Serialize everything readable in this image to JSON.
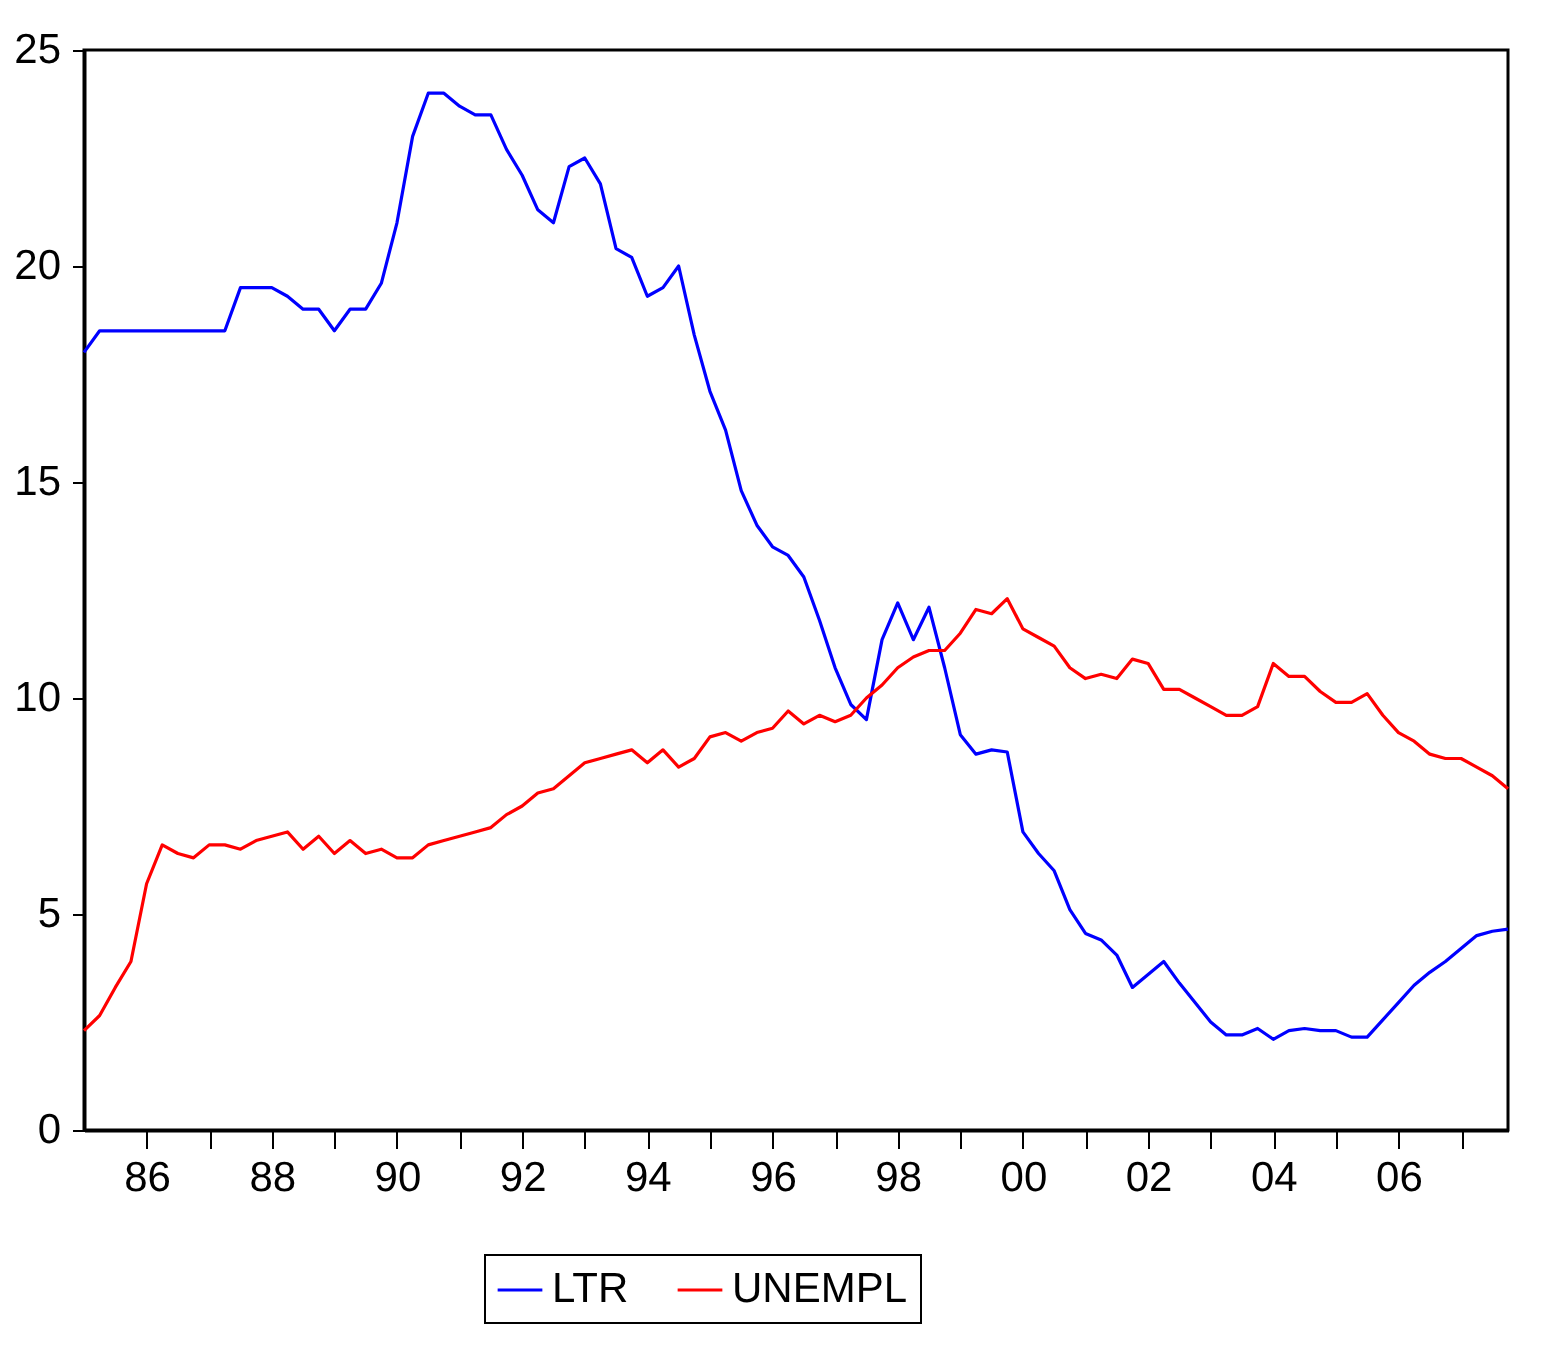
{
  "chart_data": {
    "type": "line",
    "x": [
      1985,
      1985.25,
      1985.5,
      1985.75,
      1986,
      1986.25,
      1986.5,
      1986.75,
      1987,
      1987.25,
      1987.5,
      1987.75,
      1988,
      1988.25,
      1988.5,
      1988.75,
      1989,
      1989.25,
      1989.5,
      1989.75,
      1990,
      1990.25,
      1990.5,
      1990.75,
      1991,
      1991.25,
      1991.5,
      1991.75,
      1992,
      1992.25,
      1992.5,
      1992.75,
      1993,
      1993.25,
      1993.5,
      1993.75,
      1994,
      1994.25,
      1994.5,
      1994.75,
      1995,
      1995.25,
      1995.5,
      1995.75,
      1996,
      1996.25,
      1996.5,
      1996.75,
      1997,
      1997.25,
      1997.5,
      1997.75,
      1998,
      1998.25,
      1998.5,
      1998.75,
      1999,
      1999.25,
      1999.5,
      1999.75,
      2000,
      2000.25,
      2000.5,
      2000.75,
      2001,
      2001.25,
      2001.5,
      2001.75,
      2002,
      2002.25,
      2002.5,
      2002.75,
      2003,
      2003.25,
      2003.5,
      2003.75,
      2004,
      2004.25,
      2004.5,
      2004.75,
      2005,
      2005.25,
      2005.5,
      2005.75,
      2006,
      2006.25,
      2006.5,
      2006.75,
      2007,
      2007.25,
      2007.5,
      2007.75
    ],
    "series": [
      {
        "name": "LTR",
        "color": "#0000ff",
        "values": [
          18.0,
          18.5,
          18.5,
          18.5,
          18.5,
          18.5,
          18.5,
          18.5,
          18.5,
          18.5,
          19.5,
          19.5,
          19.5,
          19.3,
          19.0,
          19.0,
          18.5,
          19.0,
          19.0,
          19.6,
          21.0,
          23.0,
          24.0,
          24.0,
          23.7,
          23.5,
          23.5,
          22.7,
          22.1,
          21.3,
          21.0,
          22.3,
          22.5,
          21.9,
          20.4,
          20.2,
          19.3,
          19.5,
          20.0,
          18.4,
          17.1,
          16.2,
          14.8,
          14.0,
          13.5,
          13.3,
          12.8,
          11.8,
          10.7,
          9.85,
          9.5,
          11.35,
          12.2,
          11.35,
          12.1,
          10.7,
          9.15,
          8.7,
          8.8,
          8.75,
          6.9,
          6.4,
          6.0,
          5.1,
          4.55,
          4.4,
          4.05,
          3.3,
          3.6,
          3.9,
          3.4,
          2.95,
          2.5,
          2.2,
          2.2,
          2.35,
          2.1,
          2.3,
          2.35,
          2.3,
          2.3,
          2.15,
          2.15,
          2.55,
          2.95,
          3.35,
          3.65,
          3.9,
          4.2,
          4.5,
          4.6,
          4.65
        ]
      },
      {
        "name": "UNEMPL",
        "color": "#ff0000",
        "values": [
          2.3,
          2.65,
          3.3,
          3.9,
          5.7,
          6.6,
          6.4,
          6.3,
          6.6,
          6.6,
          6.5,
          6.7,
          6.8,
          6.9,
          6.5,
          6.8,
          6.4,
          6.7,
          6.4,
          6.5,
          6.3,
          6.3,
          6.6,
          6.7,
          6.8,
          6.9,
          7.0,
          7.3,
          7.5,
          7.8,
          7.9,
          8.2,
          8.5,
          8.6,
          8.7,
          8.8,
          8.5,
          8.8,
          8.4,
          8.6,
          9.1,
          9.2,
          9.0,
          9.2,
          9.3,
          9.7,
          9.4,
          9.6,
          9.45,
          9.6,
          10.0,
          10.3,
          10.7,
          10.95,
          11.1,
          11.1,
          11.5,
          12.05,
          11.95,
          12.3,
          11.6,
          11.4,
          11.2,
          10.7,
          10.45,
          10.55,
          10.45,
          10.9,
          10.8,
          10.2,
          10.2,
          10.0,
          9.8,
          9.6,
          9.6,
          9.8,
          10.8,
          10.5,
          10.5,
          10.15,
          9.9,
          9.9,
          10.1,
          9.6,
          9.2,
          9.0,
          8.7,
          8.6,
          8.6,
          8.4,
          8.2,
          7.9
        ]
      }
    ],
    "xlim": [
      1985,
      2007.75
    ],
    "xticks": [
      {
        "value": 1986,
        "label": "86"
      },
      {
        "value": 1987,
        "label": null
      },
      {
        "value": 1988,
        "label": "88"
      },
      {
        "value": 1989,
        "label": null
      },
      {
        "value": 1990,
        "label": "90"
      },
      {
        "value": 1991,
        "label": null
      },
      {
        "value": 1992,
        "label": "92"
      },
      {
        "value": 1993,
        "label": null
      },
      {
        "value": 1994,
        "label": "94"
      },
      {
        "value": 1995,
        "label": null
      },
      {
        "value": 1996,
        "label": "96"
      },
      {
        "value": 1997,
        "label": null
      },
      {
        "value": 1998,
        "label": "98"
      },
      {
        "value": 1999,
        "label": null
      },
      {
        "value": 2000,
        "label": "00"
      },
      {
        "value": 2001,
        "label": null
      },
      {
        "value": 2002,
        "label": "02"
      },
      {
        "value": 2003,
        "label": null
      },
      {
        "value": 2004,
        "label": "04"
      },
      {
        "value": 2005,
        "label": null
      },
      {
        "value": 2006,
        "label": "06"
      },
      {
        "value": 2007,
        "label": null
      }
    ],
    "ylim": [
      0,
      25
    ],
    "yticks": [
      0,
      5,
      10,
      15,
      20,
      25
    ],
    "legend": "bottom",
    "grid": false,
    "marker": "none",
    "line_style": "solid"
  }
}
